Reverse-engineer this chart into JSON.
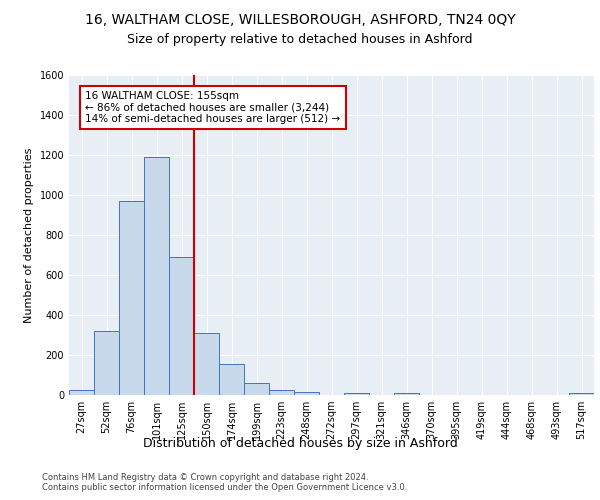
{
  "title1": "16, WALTHAM CLOSE, WILLESBOROUGH, ASHFORD, TN24 0QY",
  "title2": "Size of property relative to detached houses in Ashford",
  "xlabel": "Distribution of detached houses by size in Ashford",
  "ylabel": "Number of detached properties",
  "bin_labels": [
    "27sqm",
    "52sqm",
    "76sqm",
    "101sqm",
    "125sqm",
    "150sqm",
    "174sqm",
    "199sqm",
    "223sqm",
    "248sqm",
    "272sqm",
    "297sqm",
    "321sqm",
    "346sqm",
    "370sqm",
    "395sqm",
    "419sqm",
    "444sqm",
    "468sqm",
    "493sqm",
    "517sqm"
  ],
  "bar_values": [
    25,
    320,
    970,
    1190,
    690,
    310,
    155,
    60,
    25,
    15,
    0,
    10,
    0,
    10,
    0,
    0,
    0,
    0,
    0,
    0,
    10
  ],
  "bar_color": "#c9d9ec",
  "bar_edge_color": "#4472c4",
  "vline_color": "#cc0000",
  "vline_index": 5,
  "annotation_text": "16 WALTHAM CLOSE: 155sqm\n← 86% of detached houses are smaller (3,244)\n14% of semi-detached houses are larger (512) →",
  "annotation_box_color": "#ffffff",
  "annotation_box_edge_color": "#cc0000",
  "ylim": [
    0,
    1600
  ],
  "yticks": [
    0,
    200,
    400,
    600,
    800,
    1000,
    1200,
    1400,
    1600
  ],
  "bg_color": "#e8eef5",
  "footer_text": "Contains HM Land Registry data © Crown copyright and database right 2024.\nContains public sector information licensed under the Open Government Licence v3.0.",
  "title1_fontsize": 10,
  "title2_fontsize": 9,
  "xlabel_fontsize": 9,
  "ylabel_fontsize": 8,
  "tick_fontsize": 7,
  "footer_fontsize": 6
}
